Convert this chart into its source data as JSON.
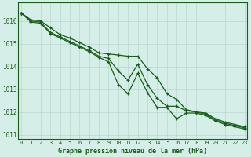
{
  "title": "Graphe pression niveau de la mer (hPa)",
  "bg_color": "#d5eee8",
  "line_color": "#1a5c1a",
  "grid_color": "#b8d8cc",
  "x": [
    0,
    1,
    2,
    3,
    4,
    5,
    6,
    7,
    8,
    9,
    10,
    11,
    12,
    13,
    14,
    15,
    16,
    17,
    18,
    19,
    20,
    21,
    22,
    23
  ],
  "line1": [
    1016.35,
    1016.05,
    1016.0,
    1015.7,
    1015.4,
    1015.25,
    1015.05,
    1014.85,
    1014.6,
    1014.55,
    1014.5,
    1014.45,
    1014.45,
    1013.9,
    1013.5,
    1012.8,
    1012.55,
    1012.1,
    1012.0,
    1011.95,
    1011.7,
    1011.55,
    1011.45,
    1011.35
  ],
  "line2": [
    1016.35,
    1016.0,
    1015.95,
    1015.5,
    1015.3,
    1015.1,
    1014.9,
    1014.7,
    1014.45,
    1014.35,
    1013.8,
    1013.4,
    1014.1,
    1013.2,
    1012.6,
    1012.25,
    1012.25,
    1012.05,
    1012.0,
    1011.9,
    1011.65,
    1011.5,
    1011.4,
    1011.3
  ],
  "line3": [
    1016.35,
    1015.95,
    1015.9,
    1015.45,
    1015.25,
    1015.05,
    1014.85,
    1014.65,
    1014.4,
    1014.2,
    1013.2,
    1012.8,
    1013.7,
    1012.85,
    1012.2,
    1012.2,
    1011.7,
    1011.95,
    1011.95,
    1011.85,
    1011.6,
    1011.45,
    1011.35,
    1011.25
  ],
  "ylim": [
    1010.8,
    1016.8
  ],
  "yticks": [
    1011,
    1012,
    1013,
    1014,
    1015,
    1016
  ],
  "marker": "+",
  "marker_size": 3.5,
  "linewidth": 0.9
}
